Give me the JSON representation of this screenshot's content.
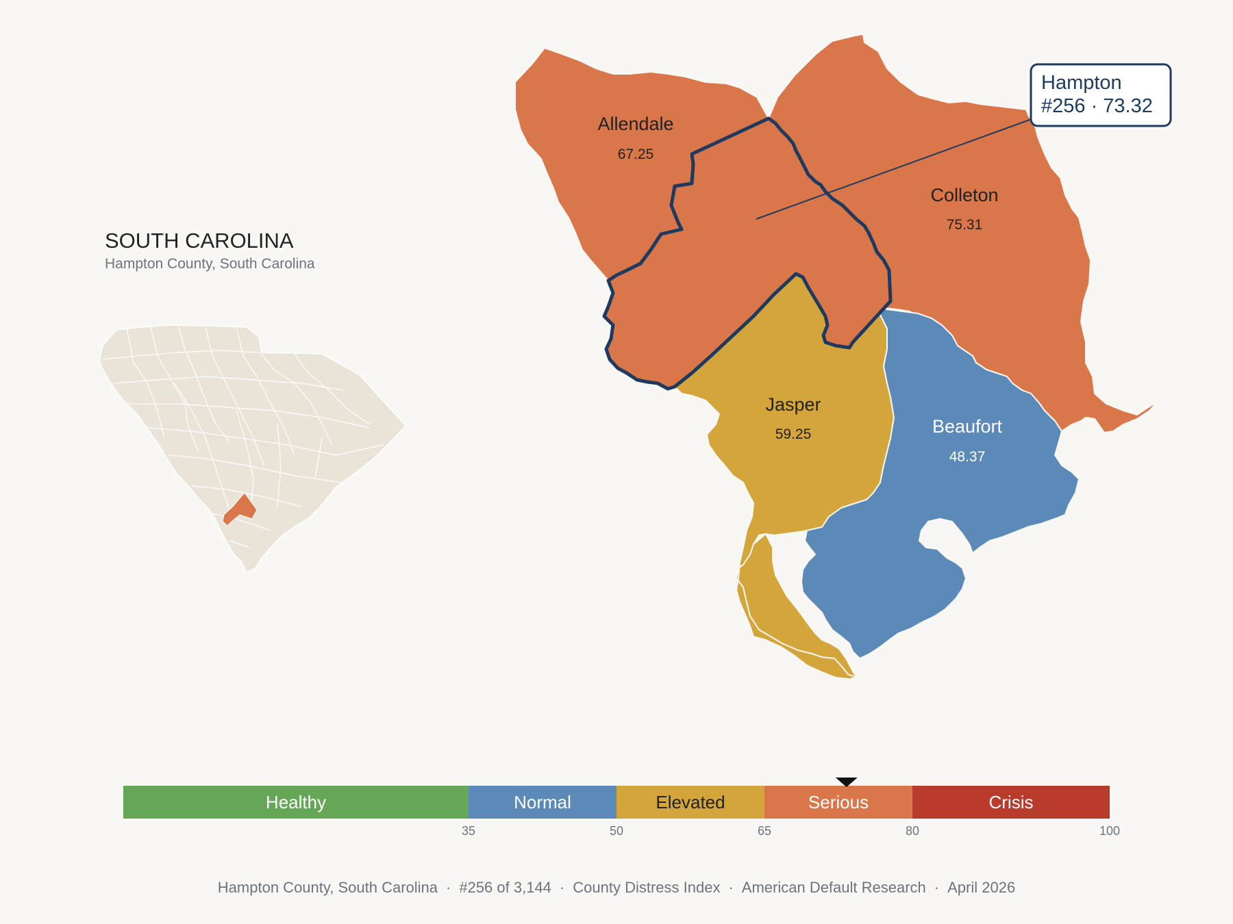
{
  "state": {
    "title": "SOUTH CAROLINA",
    "subtitle": "Hampton County, South Carolina"
  },
  "colors": {
    "background": "#f9f7f3",
    "healthy": "#66a657",
    "normal": "#5b89b8",
    "elevated": "#d3a53b",
    "serious": "#d9764a",
    "crisis": "#b83b2c",
    "highlight_outline": "#1e3a5f",
    "state_fill": "#e9e3d8"
  },
  "counties": [
    {
      "id": "allendale",
      "name": "Allendale",
      "score": "67.25",
      "category": "serious"
    },
    {
      "id": "colleton",
      "name": "Colleton",
      "score": "75.31",
      "category": "serious"
    },
    {
      "id": "jasper",
      "name": "Jasper",
      "score": "59.25",
      "category": "elevated"
    },
    {
      "id": "beaufort",
      "name": "Beaufort",
      "score": "48.37",
      "category": "normal"
    },
    {
      "id": "hampton",
      "name": "Hampton",
      "score": "73.32",
      "category": "serious"
    }
  ],
  "callout": {
    "line1": "Hampton",
    "line2": "#256 · 73.32"
  },
  "legend": {
    "min": 0,
    "max": 100,
    "marker_value": 73.32,
    "segments": [
      {
        "label": "Healthy",
        "from": 0,
        "to": 35,
        "category": "healthy"
      },
      {
        "label": "Normal",
        "from": 35,
        "to": 50,
        "category": "normal"
      },
      {
        "label": "Elevated",
        "from": 50,
        "to": 65,
        "category": "elevated"
      },
      {
        "label": "Serious",
        "from": 65,
        "to": 80,
        "category": "serious"
      },
      {
        "label": "Crisis",
        "from": 80,
        "to": 100,
        "category": "crisis"
      }
    ],
    "ticks": [
      "35",
      "50",
      "65",
      "80",
      "100"
    ]
  },
  "footer": {
    "parts": [
      "Hampton County, South Carolina",
      "#256 of 3,144",
      "County Distress Index",
      "American Default Research",
      "April 2026"
    ],
    "separator": "·"
  }
}
